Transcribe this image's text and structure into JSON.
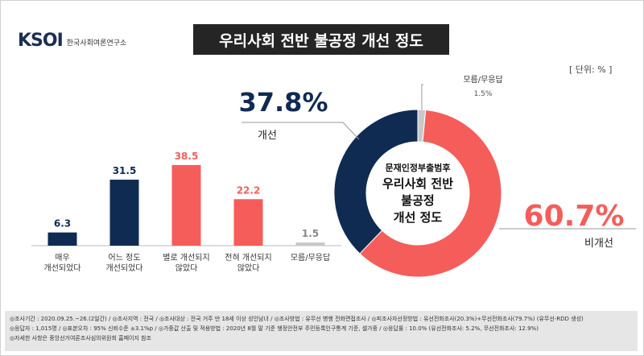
{
  "header": {
    "logo_text": "KSOI",
    "logo_subtitle": "한국사회여론연구소",
    "title": "우리사회 전반 불공정 개선 정도",
    "unit": "[ 단위: % ]"
  },
  "colors": {
    "navy": "#0f2b52",
    "coral": "#f55d5a",
    "gray": "#c8c8c8"
  },
  "chart_data": [
    {
      "type": "bar",
      "categories": [
        "매우\n개선되었다",
        "어느 정도\n개선되었다",
        "별로 개선되지\n않았다",
        "전혀 개선되지\n않았다",
        "모름/무응답"
      ],
      "values": [
        6.3,
        31.5,
        38.5,
        22.2,
        1.5
      ],
      "value_labels": [
        "6.3",
        "31.5",
        "38.5",
        "22.2",
        "1.5"
      ],
      "colors": [
        "#0f2b52",
        "#0f2b52",
        "#f55d5a",
        "#f55d5a",
        "#c8c8c8"
      ]
    },
    {
      "type": "pie",
      "variant": "donut",
      "center_text": [
        "문재인정부출범후",
        "우리사회 전반",
        "불공정",
        "개선 정도"
      ],
      "slices": [
        {
          "label": "모름/무응답",
          "value": 1.5,
          "value_label": "1.5%",
          "color": "#c8c8c8"
        },
        {
          "label": "비개선",
          "value": 60.7,
          "value_label": "60.7%",
          "color": "#f55d5a"
        },
        {
          "label": "개선",
          "value": 37.8,
          "value_label": "37.8%",
          "color": "#0f2b52"
        }
      ]
    }
  ],
  "footer": {
    "line1": "◎조사기간 : 2020.09.25.~26.(2일간)  / ◎조사지역 : 전국  / ◎조사대상 : 전국 거주 만 18세 이상 성인남녀  / ◎조사방법 : 유무선 병행 전화면접조사  / ◎피조사자선정방법 : 유선전화조사(20.3%)+무선전화조사(79.7%) (유무선-RDD 생성)",
    "line2": "◎응답자 : 1,015명  / ◎표본오차 : 95% 신뢰수준 ±3.1%p  / ◎가중값 산출 및 적용방법 : 2020년 8월 말 기준 행정안전부 주민등록인구통계 기준, 셀가중  / ◎응답률 : 10.0% (유선전화조사: 5.2%, 무선전화조사: 12.9%)",
    "line3": "◎자세한 사항은 중앙선거여론조사심의위원회 홈페이지 참조"
  }
}
